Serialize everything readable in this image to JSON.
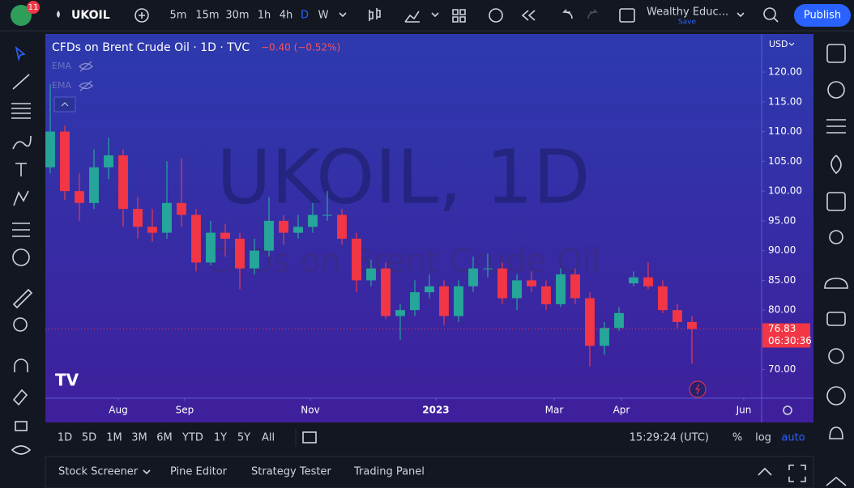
{
  "toolbar": {
    "badge": "11",
    "symbol": "UKOIL",
    "intervals": [
      "5m",
      "15m",
      "30m",
      "1h",
      "4h",
      "D",
      "W"
    ],
    "layout_name": "Wealthy Educ...",
    "save": "Save",
    "publish": "Publish"
  },
  "chart_data": {
    "type": "candlestick",
    "title": "CFDs on Brent Crude Oil · 1D · TVC",
    "change": "−0.40 (−0.52%)",
    "indicators": [
      "EMA",
      "EMA"
    ],
    "watermark": "UKOIL, 1D",
    "watermark_subtitle": "CFDs on Brent Crude Oil",
    "currency": "USD",
    "open": [
      104,
      110,
      100,
      98,
      104,
      106,
      97,
      94,
      93,
      98,
      96,
      88,
      93,
      92,
      87,
      90,
      95,
      93,
      94,
      96,
      96,
      92,
      85,
      87,
      79,
      80,
      83,
      84,
      79,
      84,
      87,
      87,
      82,
      85,
      84,
      81,
      86,
      82,
      74,
      77,
      84.5,
      85.5,
      84,
      80,
      78
    ],
    "high": [
      118,
      111,
      103,
      107,
      109,
      107,
      99,
      97,
      105,
      105.5,
      97,
      95,
      94.5,
      93,
      92,
      99,
      96,
      96,
      98,
      100,
      97,
      93,
      88.5,
      88,
      81,
      85,
      86,
      85,
      85,
      89,
      89.5,
      88,
      86,
      86.5,
      85,
      87,
      87,
      83,
      78,
      80.5,
      86.5,
      88,
      85,
      81,
      79
    ],
    "low": [
      103,
      98.5,
      95,
      97,
      102,
      94,
      92,
      91.5,
      92,
      94,
      86.5,
      87.5,
      89,
      83.5,
      86,
      89,
      91,
      92,
      93,
      95,
      91,
      83,
      84,
      78.5,
      75,
      79,
      82,
      77.5,
      78,
      83,
      85.5,
      81,
      80,
      83,
      80,
      80.5,
      81,
      70.5,
      72.5,
      76.5,
      84,
      83.5,
      79.5,
      77,
      71
    ],
    "close": [
      110,
      100,
      98,
      104,
      106,
      97,
      94,
      93,
      98,
      96,
      88,
      93,
      92,
      87,
      90,
      95,
      93,
      94,
      96,
      96,
      92,
      85,
      87,
      79,
      80,
      83,
      84,
      79,
      84,
      87,
      87,
      82,
      85,
      84,
      81,
      86,
      82,
      74,
      77,
      79.5,
      85.5,
      84,
      80,
      78,
      76.83
    ],
    "up_color": "#26a69a",
    "down_color": "#f23645",
    "ylim": [
      65.2,
      126.4
    ],
    "yticks": [
      {
        "value": 70,
        "label": "70.00"
      },
      {
        "value": 75,
        "label": ""
      },
      {
        "value": 80,
        "label": "80.00"
      },
      {
        "value": 85,
        "label": "85.00"
      },
      {
        "value": 90,
        "label": "90.00"
      },
      {
        "value": 95,
        "label": "95.00"
      },
      {
        "value": 100,
        "label": "100.00"
      },
      {
        "value": 105,
        "label": "105.00"
      },
      {
        "value": 110,
        "label": "110.00"
      },
      {
        "value": 115,
        "label": "115.00"
      },
      {
        "value": 120,
        "label": "120.00"
      }
    ],
    "xlim": [
      -0.333,
      48.78
    ],
    "xticks": [
      {
        "value": 4.667,
        "label": "Aug"
      },
      {
        "value": 9.222,
        "label": "Sep"
      },
      {
        "value": 17.833,
        "label": "Nov"
      },
      {
        "value": 26.444,
        "label": "2023"
      },
      {
        "value": 34.556,
        "label": "Mar"
      },
      {
        "value": 39.167,
        "label": "Apr"
      },
      {
        "value": 47.556,
        "label": "Jun"
      }
    ],
    "countdown": "06:30:36"
  },
  "range_bar": {
    "ranges": [
      "1D",
      "5D",
      "1M",
      "3M",
      "6M",
      "YTD",
      "1Y",
      "5Y",
      "All"
    ],
    "time": "15:29:24 (UTC)",
    "percent": "%",
    "log": "log",
    "auto": "auto"
  },
  "panel": {
    "tabs": [
      "Stock Screener",
      "Pine Editor",
      "Strategy Tester",
      "Trading Panel"
    ]
  }
}
